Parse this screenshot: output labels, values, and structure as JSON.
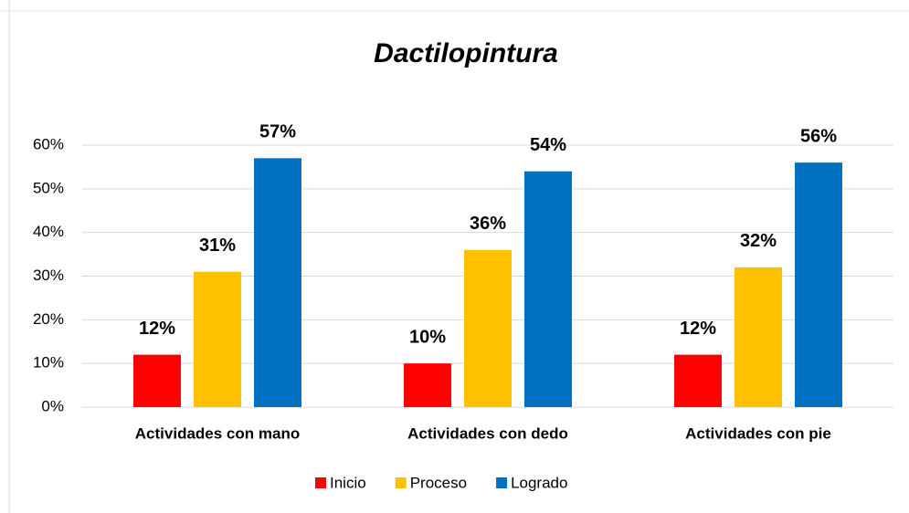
{
  "chart_data": {
    "type": "bar",
    "title": "Dactilopintura",
    "categories": [
      "Actividades con mano",
      "Actividades con dedo",
      "Actividades con pie"
    ],
    "series": [
      {
        "name": "Inicio",
        "color": "#ff0000",
        "values": [
          12,
          10,
          12
        ],
        "value_labels": [
          "12%",
          "10%",
          "12%"
        ]
      },
      {
        "name": "Proceso",
        "color": "#ffc000",
        "values": [
          31,
          36,
          32
        ],
        "value_labels": [
          "31%",
          "36%",
          "32%"
        ]
      },
      {
        "name": "Logrado",
        "color": "#0070c0",
        "values": [
          57,
          54,
          56
        ],
        "value_labels": [
          "57%",
          "54%",
          "56%"
        ]
      }
    ],
    "ylim": [
      0,
      60
    ],
    "yticks": [
      {
        "value": 0,
        "label": "0%"
      },
      {
        "value": 10,
        "label": "10%"
      },
      {
        "value": 20,
        "label": "20%"
      },
      {
        "value": 30,
        "label": "30%"
      },
      {
        "value": 40,
        "label": "40%"
      },
      {
        "value": 50,
        "label": "50%"
      },
      {
        "value": 60,
        "label": "60%"
      }
    ],
    "grid": true,
    "legend": "bottom"
  }
}
